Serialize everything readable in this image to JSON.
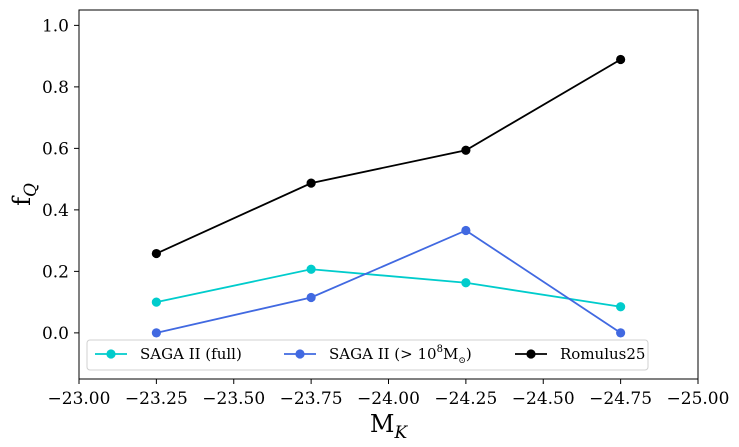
{
  "chart_data": {
    "type": "line",
    "title": "",
    "xlabel": "M",
    "xlabel_sub": "K",
    "ylabel": "f",
    "ylabel_sub": "Q",
    "xlim": [
      -23.0,
      -25.0
    ],
    "ylim": [
      -0.15,
      1.05
    ],
    "x_inverted": true,
    "xticks": [
      -23.0,
      -23.25,
      -23.5,
      -23.75,
      -24.0,
      -24.25,
      -24.5,
      -24.75,
      -25.0
    ],
    "xtick_labels": [
      "−23.00",
      "−23.25",
      "−23.50",
      "−23.75",
      "−24.00",
      "−24.25",
      "−24.50",
      "−24.75",
      "−25.00"
    ],
    "yticks": [
      0.0,
      0.2,
      0.4,
      0.6,
      0.8,
      1.0
    ],
    "ytick_labels": [
      "0.0",
      "0.2",
      "0.4",
      "0.6",
      "0.8",
      "1.0"
    ],
    "grid": false,
    "legend_position": "bottom",
    "x": [
      -23.25,
      -23.75,
      -24.25,
      -24.75
    ],
    "series": [
      {
        "name": "SAGA II (full)",
        "legend_text": "SAGA II (full)",
        "color": "#00cccc",
        "values": [
          0.1,
          0.207,
          0.163,
          0.085
        ]
      },
      {
        "name": "SAGA II (> 10^8 M☉)",
        "legend_text": "SAGA II (> 10",
        "legend_sup": "8",
        "legend_tail": "M",
        "legend_sub": "⊙",
        "legend_close": ")",
        "color": "#4169e1",
        "values": [
          0.0,
          0.115,
          0.333,
          0.0
        ]
      },
      {
        "name": "Romulus25",
        "legend_text": "Romulus25",
        "color": "#000000",
        "values": [
          0.258,
          0.487,
          0.594,
          0.889
        ]
      }
    ]
  }
}
